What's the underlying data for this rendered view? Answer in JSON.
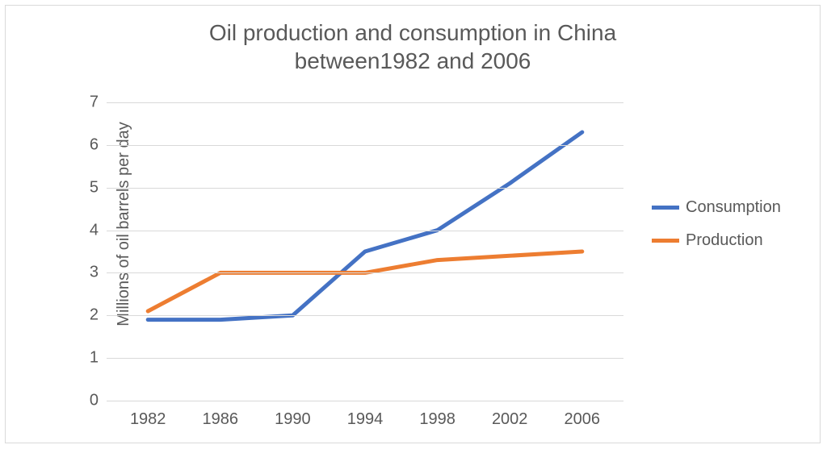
{
  "chart": {
    "type": "line",
    "title_line1": "Oil production and consumption in China",
    "title_line2": "between1982 and 2006",
    "title_fontsize": 28,
    "title_color": "#595959",
    "ylabel": "Millions of oil barrels per day",
    "ylabel_fontsize": 20,
    "tick_fontsize": 20,
    "legend_fontsize": 20,
    "background_color": "#ffffff",
    "border_color": "#d9d9d9",
    "grid_color": "#d9d9d9",
    "axis_font_color": "#595959",
    "ylim": [
      0,
      7
    ],
    "ytick_step": 1,
    "yticks": [
      0,
      1,
      2,
      3,
      4,
      5,
      6,
      7
    ],
    "x_categories": [
      "1982",
      "1986",
      "1990",
      "1994",
      "1998",
      "2002",
      "2006"
    ],
    "line_width": 5,
    "legend_swatch_width": 34,
    "legend_swatch_height": 5,
    "series": [
      {
        "name": "Consumption",
        "color": "#4472c4",
        "values": [
          1.9,
          1.9,
          2.0,
          3.5,
          4.0,
          5.1,
          6.3
        ]
      },
      {
        "name": "Production",
        "color": "#ed7d31",
        "values": [
          2.1,
          3.0,
          3.0,
          3.0,
          3.3,
          3.4,
          3.5
        ]
      }
    ]
  }
}
